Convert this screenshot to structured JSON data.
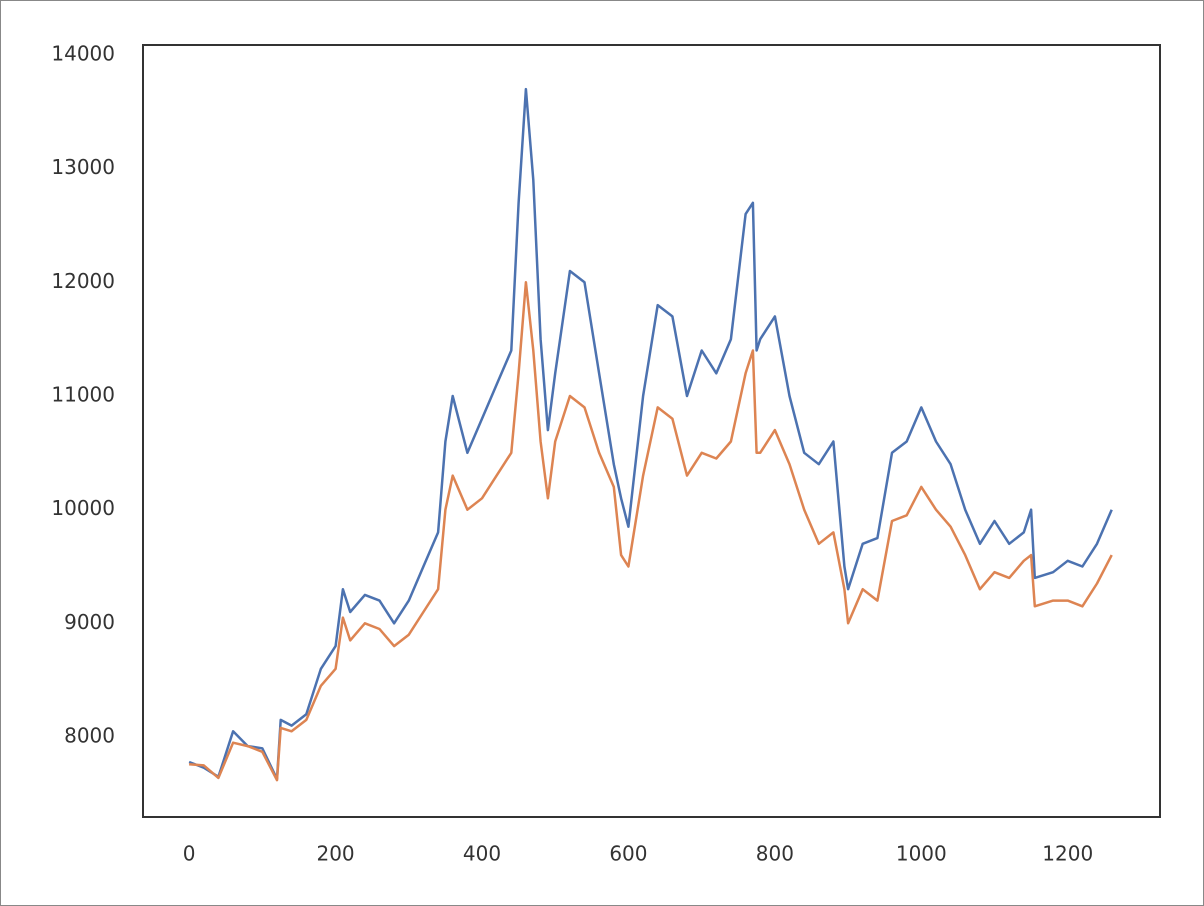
{
  "chart_data": {
    "type": "line",
    "x": [
      0,
      20,
      40,
      60,
      80,
      100,
      120,
      125,
      140,
      160,
      180,
      200,
      210,
      220,
      240,
      260,
      280,
      300,
      320,
      340,
      350,
      360,
      380,
      400,
      420,
      440,
      450,
      460,
      470,
      480,
      490,
      500,
      520,
      540,
      560,
      580,
      590,
      600,
      620,
      640,
      660,
      680,
      700,
      720,
      740,
      760,
      770,
      775,
      780,
      800,
      820,
      840,
      860,
      880,
      895,
      900,
      920,
      940,
      960,
      980,
      1000,
      1020,
      1040,
      1060,
      1080,
      1100,
      1120,
      1140,
      1150,
      1155,
      1180,
      1200,
      1220,
      1240,
      1260
    ],
    "series": [
      {
        "color": "#4c72b0",
        "values": [
          7780,
          7730,
          7650,
          8050,
          7920,
          7900,
          7630,
          8150,
          8100,
          8200,
          8600,
          8800,
          9300,
          9100,
          9250,
          9200,
          9000,
          9200,
          9500,
          9800,
          10600,
          11000,
          10500,
          10800,
          11100,
          11400,
          12700,
          13700,
          12900,
          11500,
          10700,
          11200,
          12100,
          12000,
          11200,
          10400,
          10100,
          9850,
          11000,
          11800,
          11700,
          11000,
          11400,
          11200,
          11500,
          12600,
          12700,
          11400,
          11500,
          11700,
          11000,
          10500,
          10400,
          10600,
          9500,
          9300,
          9700,
          9750,
          10500,
          10600,
          10900,
          10600,
          10400,
          10000,
          9700,
          9900,
          9700,
          9800,
          10000,
          9400,
          9450,
          9550,
          9500,
          9700,
          10000
        ]
      },
      {
        "color": "#dd8452",
        "values": [
          7760,
          7750,
          7640,
          7950,
          7920,
          7870,
          7620,
          8080,
          8050,
          8150,
          8450,
          8600,
          9050,
          8850,
          9000,
          8950,
          8800,
          8900,
          9100,
          9300,
          10000,
          10300,
          10000,
          10100,
          10300,
          10500,
          11200,
          12000,
          11400,
          10600,
          10100,
          10600,
          11000,
          10900,
          10500,
          10200,
          9600,
          9500,
          10300,
          10900,
          10800,
          10300,
          10500,
          10450,
          10600,
          11200,
          11400,
          10500,
          10500,
          10700,
          10400,
          10000,
          9700,
          9800,
          9300,
          9000,
          9300,
          9200,
          9900,
          9950,
          10200,
          10000,
          9850,
          9600,
          9300,
          9450,
          9400,
          9550,
          9600,
          9150,
          9200,
          9200,
          9150,
          9350,
          9600
        ]
      }
    ],
    "xlim": [
      -63,
      1326
    ],
    "ylim": [
      7296,
      14088
    ],
    "xticks": [
      0,
      200,
      400,
      600,
      800,
      1000,
      1200
    ],
    "yticks": [
      8000,
      9000,
      10000,
      11000,
      12000,
      13000,
      14000
    ],
    "grid": false
  }
}
